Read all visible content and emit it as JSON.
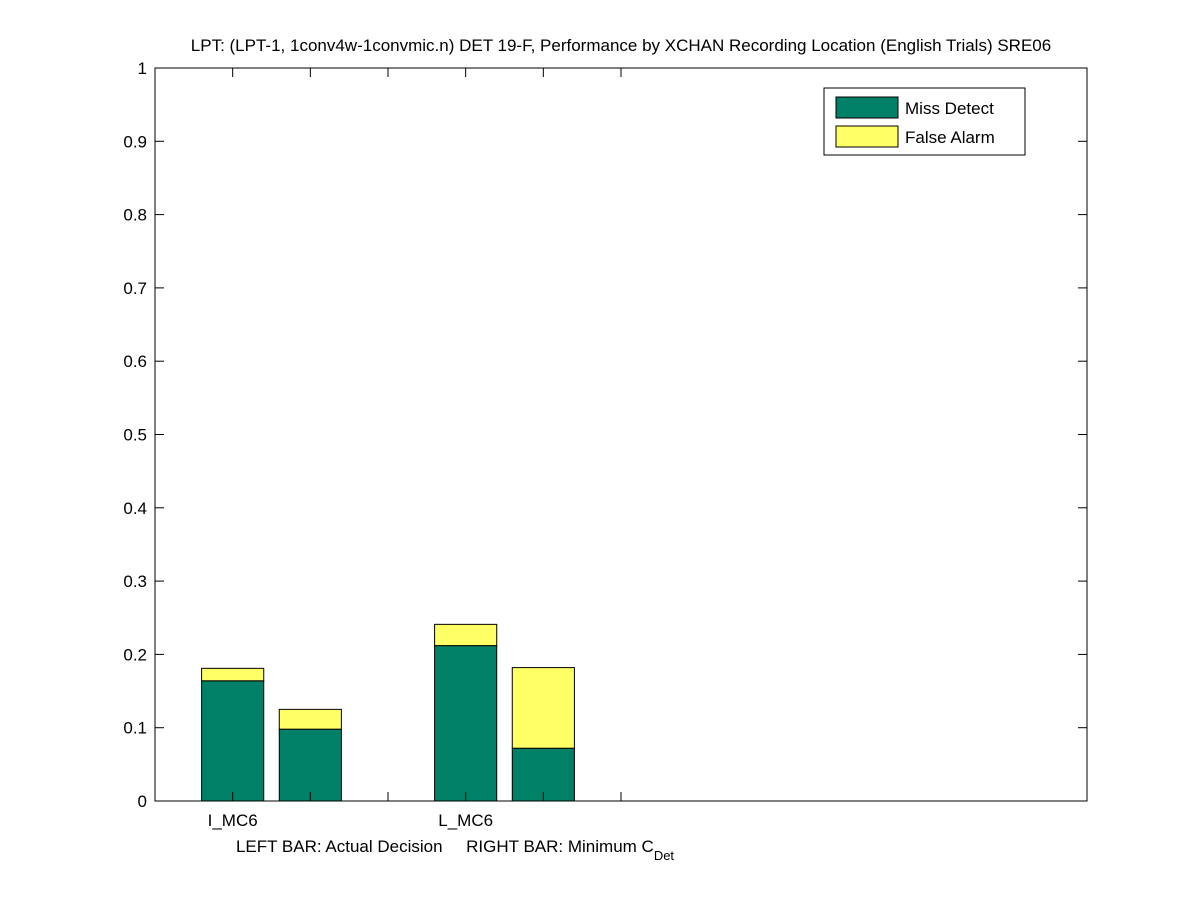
{
  "chart_data": {
    "type": "bar",
    "stacked": true,
    "title": "LPT: (LPT-1, 1conv4w-1convmic.n) DET 19-F,  Performance by XCHAN Recording Location (English Trials) SRE06",
    "xlabel": "LEFT BAR: Actual Decision     RIGHT BAR: Minimum C",
    "xlabel_subscript": "Det",
    "ylabel": "",
    "ylim": [
      0,
      1
    ],
    "xlim": [
      0,
      12
    ],
    "yticks": [
      0,
      0.1,
      0.2,
      0.3,
      0.4,
      0.5,
      0.6,
      0.7,
      0.8,
      0.9,
      1
    ],
    "ytick_labels": [
      "0",
      "0.1",
      "0.2",
      "0.3",
      "0.4",
      "0.5",
      "0.6",
      "0.7",
      "0.8",
      "0.9",
      "1"
    ],
    "xticks": [
      1,
      2,
      3,
      4,
      5,
      6
    ],
    "xtick_labels": [
      "I_MC6",
      "",
      "",
      "L_MC6",
      "",
      ""
    ],
    "bar_x": [
      1,
      2,
      4,
      5
    ],
    "bar_width": 0.8,
    "series": [
      {
        "name": "Miss Detect",
        "color": "#008066",
        "values": [
          0.164,
          0.098,
          0.212,
          0.072
        ]
      },
      {
        "name": "False Alarm",
        "color": "#ffff66",
        "values": [
          0.017,
          0.027,
          0.029,
          0.11
        ]
      }
    ],
    "grid": false,
    "legend_position": "top-right"
  }
}
